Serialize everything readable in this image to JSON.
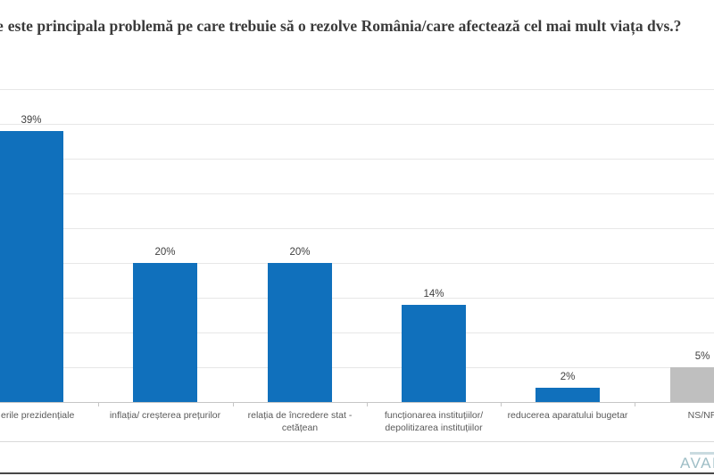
{
  "title": {
    "clipped_prefix": "e",
    "text": "este principala problemă pe care trebuie să o rezolve România/care afectează cel mai mult viața dvs.?"
  },
  "footer": {
    "logo_text": "AVAN",
    "logo_color": "#9ebec6"
  },
  "chart_data": {
    "type": "bar",
    "title": "este principala problemă pe care trebuie să o rezolve România/care afectează cel mai mult viața dvs.?",
    "categories": [
      "erile  prezidențiale",
      "inflația/ creșterea prețurilor",
      "relația de încredere stat - cetățean",
      "funcționarea instituțiilor/ depolitizarea instituțiilor",
      "reducerea aparatului bugetar",
      "NS/NR"
    ],
    "category_lines": [
      [
        "erile  prezidențiale"
      ],
      [
        "inflația/ creșterea prețurilor"
      ],
      [
        "relația de încredere stat -",
        "cetățean"
      ],
      [
        "funcționarea instituțiilor/",
        "depolitizarea instituțiilor"
      ],
      [
        "reducerea aparatului bugetar"
      ],
      [
        "NS/NR"
      ]
    ],
    "values": [
      39,
      20,
      20,
      14,
      2,
      5
    ],
    "value_labels": [
      "39%",
      "20%",
      "20%",
      "14%",
      "2%",
      "5%"
    ],
    "bar_colors": [
      "#1070bc",
      "#1070bc",
      "#1070bc",
      "#1070bc",
      "#1070bc",
      "#bfbfbf"
    ],
    "accent_color": "#1070bc",
    "nsnr_color": "#bfbfbf",
    "xlabel": "",
    "ylabel": "",
    "ylim": [
      0,
      45
    ],
    "gridline_step_pct": 5,
    "grid": true,
    "legend": false,
    "data_labels": true,
    "note": "left edge of chart clipped; first category label and NS/NR bar partially cut off"
  }
}
